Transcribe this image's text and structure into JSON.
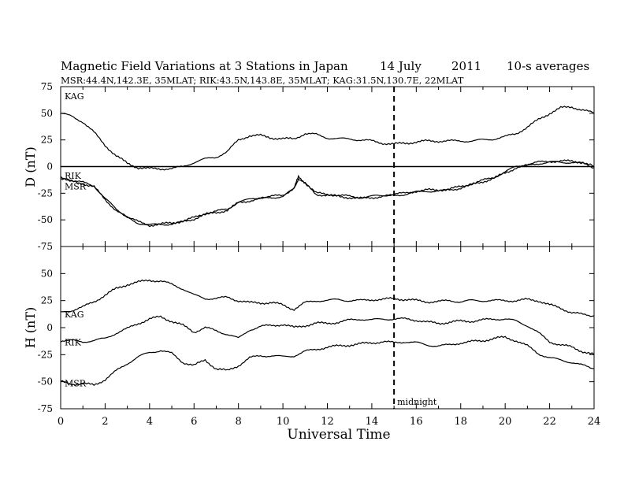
{
  "header": {
    "title": "Magnetic Field Variations at 3 Stations in Japan",
    "date": "14 July",
    "year": "2011",
    "averaging": "10-s averages",
    "stations_line": "MSR:44.4N,142.3E, 35MLAT;  RIK:43.5N,143.8E, 35MLAT;  KAG:31.5N,130.7E, 22MLAT"
  },
  "chart_data": [
    {
      "type": "line",
      "panel": "top",
      "ylabel": "D (nT)",
      "ylim": [
        -75,
        75
      ],
      "yticks": [
        "75",
        "50",
        "25",
        "0",
        "-25",
        "-50",
        "-75"
      ],
      "xlim": [
        0,
        24
      ],
      "zero_line": true,
      "series": [
        {
          "name": "KAG",
          "x": [
            0,
            0.5,
            1,
            1.5,
            2,
            2.5,
            3,
            3.5,
            4,
            4.5,
            5,
            5.5,
            6,
            6.5,
            7,
            7.5,
            8,
            8.5,
            9,
            9.5,
            10,
            10.5,
            11,
            11.5,
            12,
            12.5,
            13,
            13.5,
            14,
            14.5,
            15,
            15.5,
            16,
            16.5,
            17,
            17.5,
            18,
            18.5,
            19,
            19.5,
            20,
            20.5,
            21,
            21.5,
            22,
            22.5,
            23,
            23.5,
            24
          ],
          "values": [
            50,
            47,
            42,
            32,
            20,
            10,
            3,
            -1,
            -2,
            -2,
            -2,
            0,
            4,
            7,
            9,
            14,
            25,
            29,
            29,
            27,
            26,
            26,
            31,
            30,
            27,
            26,
            26,
            25,
            24,
            22,
            21,
            22,
            23,
            24,
            24,
            24,
            24,
            24,
            25,
            26,
            28,
            31,
            37,
            44,
            50,
            55,
            56,
            53,
            50
          ]
        },
        {
          "name": "RIK",
          "x": [
            0,
            0.5,
            1,
            1.5,
            2,
            2.5,
            3,
            3.5,
            4,
            4.5,
            5,
            5.5,
            6,
            6.5,
            7,
            7.5,
            8,
            8.5,
            9,
            9.5,
            10,
            10.5,
            10.7,
            11,
            11.5,
            12,
            12.5,
            13,
            13.5,
            14,
            14.5,
            15,
            15.5,
            16,
            16.5,
            17,
            17.5,
            18,
            18.5,
            19,
            19.5,
            20,
            20.5,
            21,
            21.5,
            22,
            22.5,
            23,
            23.5,
            24
          ],
          "values": [
            -10,
            -13,
            -15,
            -18,
            -30,
            -40,
            -47,
            -52,
            -55,
            -54,
            -53,
            -51,
            -48,
            -44,
            -42,
            -40,
            -33,
            -31,
            -29,
            -28,
            -27,
            -20,
            -10,
            -15,
            -25,
            -26,
            -27,
            -28,
            -29,
            -28,
            -27,
            -26,
            -25,
            -23,
            -22,
            -22,
            -21,
            -19,
            -16,
            -13,
            -10,
            -5,
            0,
            2,
            4,
            5,
            5,
            5,
            4,
            0
          ]
        },
        {
          "name": "MSR",
          "x": [
            0,
            0.5,
            1,
            1.5,
            2,
            2.5,
            3,
            3.5,
            4,
            4.5,
            5,
            5.5,
            6,
            6.5,
            7,
            7.5,
            8,
            8.5,
            9,
            9.5,
            10,
            10.5,
            10.7,
            11,
            11.5,
            12,
            12.5,
            13,
            13.5,
            14,
            14.5,
            15,
            15.5,
            16,
            16.5,
            17,
            17.5,
            18,
            18.5,
            19,
            19.5,
            20,
            20.5,
            21,
            21.5,
            22,
            22.5,
            23,
            23.5,
            24
          ],
          "values": [
            -11,
            -14,
            -16,
            -19,
            -31,
            -41,
            -48,
            -53,
            -55,
            -54,
            -54,
            -52,
            -49,
            -45,
            -43,
            -41,
            -34,
            -32,
            -30,
            -29,
            -28,
            -21,
            -11,
            -16,
            -26,
            -27,
            -28,
            -29,
            -30,
            -29,
            -28,
            -27,
            -26,
            -24,
            -23,
            -23,
            -22,
            -20,
            -17,
            -14,
            -11,
            -6,
            -1,
            1,
            3,
            4,
            4,
            4,
            3,
            -1
          ]
        }
      ]
    },
    {
      "type": "line",
      "panel": "bottom",
      "ylabel": "H (nT)",
      "ylim": [
        -75,
        75
      ],
      "yticks": [
        "75",
        "50",
        "25",
        "0",
        "-25",
        "-50",
        "-75"
      ],
      "xlim": [
        0,
        24
      ],
      "xticks": [
        "0",
        "2",
        "4",
        "6",
        "8",
        "10",
        "12",
        "14",
        "16",
        "18",
        "20",
        "22",
        "24"
      ],
      "xlabel": "Universal Time",
      "series": [
        {
          "name": "KAG",
          "x": [
            0,
            0.5,
            1,
            1.5,
            2,
            2.5,
            3,
            3.5,
            4,
            4.5,
            5,
            5.5,
            6,
            6.5,
            7,
            7.5,
            8,
            8.5,
            9,
            9.5,
            10,
            10.5,
            11,
            11.5,
            12,
            12.5,
            13,
            13.5,
            14,
            14.5,
            15,
            15.5,
            16,
            16.5,
            17,
            17.5,
            18,
            18.5,
            19,
            19.5,
            20,
            20.5,
            21,
            21.5,
            22,
            22.5,
            23,
            23.5,
            24
          ],
          "values": [
            14,
            16,
            19,
            24,
            30,
            36,
            40,
            42,
            44,
            43,
            40,
            36,
            30,
            27,
            27,
            28,
            25,
            23,
            23,
            23,
            21,
            17,
            23,
            25,
            25,
            26,
            25,
            25,
            26,
            26,
            27,
            26,
            25,
            24,
            24,
            25,
            24,
            25,
            25,
            25,
            25,
            25,
            26,
            25,
            21,
            18,
            14,
            12,
            11
          ]
        },
        {
          "name": "RIK",
          "x": [
            0,
            0.5,
            1,
            1.5,
            2,
            2.5,
            3,
            3.5,
            4,
            4.5,
            5,
            5.5,
            6,
            6.5,
            7,
            7.5,
            8,
            8.5,
            9,
            9.5,
            10,
            10.5,
            11,
            11.5,
            12,
            12.5,
            13,
            13.5,
            14,
            14.5,
            15,
            15.5,
            16,
            16.5,
            17,
            17.5,
            18,
            18.5,
            19,
            19.5,
            20,
            20.5,
            21,
            21.5,
            22,
            22.5,
            23,
            23.5,
            24
          ],
          "values": [
            -12,
            -12,
            -13,
            -12,
            -10,
            -5,
            -1,
            4,
            8,
            10,
            6,
            2,
            -4,
            0,
            -3,
            -6,
            -10,
            -2,
            1,
            2,
            3,
            0,
            2,
            4,
            4,
            5,
            7,
            8,
            7,
            8,
            8,
            8,
            7,
            5,
            4,
            5,
            6,
            6,
            7,
            8,
            8,
            6,
            2,
            -5,
            -13,
            -16,
            -18,
            -22,
            -25
          ]
        },
        {
          "name": "MSR",
          "x": [
            0,
            0.5,
            1,
            1.5,
            2,
            2.5,
            3,
            3.5,
            4,
            4.5,
            5,
            5.5,
            6,
            6.5,
            7,
            7.5,
            8,
            8.5,
            9,
            9.5,
            10,
            10.5,
            11,
            11.5,
            12,
            12.5,
            13,
            13.5,
            14,
            14.5,
            15,
            15.5,
            16,
            16.5,
            17,
            17.5,
            18,
            18.5,
            19,
            19.5,
            20,
            20.5,
            21,
            21.5,
            22,
            22.5,
            23,
            23.5,
            24
          ],
          "values": [
            -50,
            -52,
            -52,
            -53,
            -48,
            -40,
            -33,
            -27,
            -23,
            -21,
            -24,
            -32,
            -35,
            -30,
            -38,
            -40,
            -35,
            -28,
            -26,
            -26,
            -27,
            -26,
            -22,
            -20,
            -18,
            -17,
            -16,
            -15,
            -14,
            -13,
            -14,
            -13,
            -14,
            -16,
            -17,
            -16,
            -14,
            -13,
            -12,
            -10,
            -9,
            -12,
            -17,
            -24,
            -28,
            -30,
            -32,
            -35,
            -38
          ]
        }
      ]
    }
  ],
  "annotations": {
    "midnight_ut": 15,
    "midnight_label": "midnight"
  }
}
